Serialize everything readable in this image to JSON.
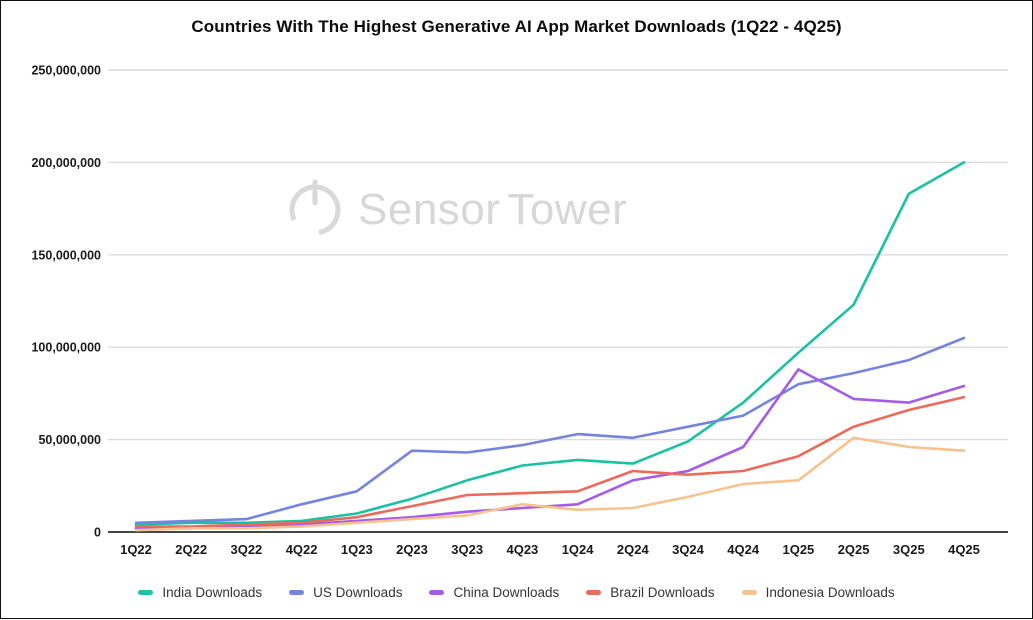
{
  "watermark": {
    "part1": "Sensor",
    "part2": "Tower",
    "icon": "sensor-tower-logo"
  },
  "chart_data": {
    "type": "line",
    "title": "Countries With The Highest Generative AI App Market Downloads (1Q22 - 4Q25)",
    "xlabel": "",
    "ylabel": "",
    "ylim": [
      0,
      250000000
    ],
    "grid": true,
    "legend_position": "bottom",
    "y_tick_labels": [
      "0",
      "50,000,000",
      "100,000,000",
      "150,000,000",
      "200,000,000",
      "250,000,000"
    ],
    "y_tick_values": [
      0,
      50000000,
      100000000,
      150000000,
      200000000,
      250000000
    ],
    "categories": [
      "1Q22",
      "2Q22",
      "3Q22",
      "4Q22",
      "1Q23",
      "2Q23",
      "3Q23",
      "4Q23",
      "1Q24",
      "2Q24",
      "3Q24",
      "4Q24",
      "1Q25",
      "2Q25",
      "3Q25",
      "4Q25"
    ],
    "series": [
      {
        "name": "India Downloads",
        "color": "#1ac1a2",
        "values": [
          4000000,
          5000000,
          5000000,
          6000000,
          10000000,
          18000000,
          28000000,
          36000000,
          39000000,
          37000000,
          49000000,
          70000000,
          97000000,
          123000000,
          183000000,
          200000000
        ]
      },
      {
        "name": "US Downloads",
        "color": "#7585dd",
        "values": [
          5000000,
          6000000,
          7000000,
          15000000,
          22000000,
          44000000,
          43000000,
          47000000,
          53000000,
          51000000,
          57000000,
          63000000,
          80000000,
          86000000,
          93000000,
          105000000
        ]
      },
      {
        "name": "China Downloads",
        "color": "#a35de8",
        "values": [
          2000000,
          2000000,
          3000000,
          4000000,
          6000000,
          8000000,
          11000000,
          13000000,
          15000000,
          28000000,
          33000000,
          46000000,
          88000000,
          72000000,
          70000000,
          79000000
        ]
      },
      {
        "name": "Brazil Downloads",
        "color": "#ec6a5c",
        "values": [
          3000000,
          3000000,
          4000000,
          5000000,
          8000000,
          14000000,
          20000000,
          21000000,
          22000000,
          33000000,
          31000000,
          33000000,
          41000000,
          57000000,
          66000000,
          73000000
        ]
      },
      {
        "name": "Indonesia Downloads",
        "color": "#f6c28f",
        "values": [
          1000000,
          2000000,
          2000000,
          3000000,
          5000000,
          7000000,
          9000000,
          15000000,
          12000000,
          13000000,
          19000000,
          26000000,
          28000000,
          51000000,
          46000000,
          44000000
        ]
      }
    ],
    "style": {
      "grid_color": "#dcdcdc",
      "axis_color": "#454545",
      "tick_label_color": "#1a1a1a",
      "watermark_color": "#d7d7d7"
    }
  }
}
